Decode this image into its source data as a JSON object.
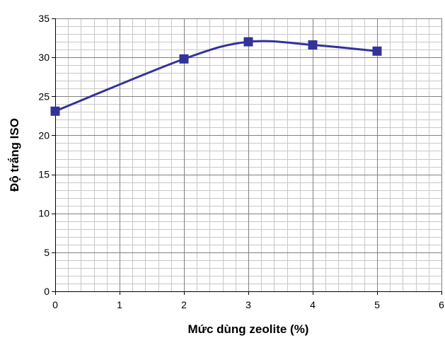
{
  "chart_data": {
    "type": "line",
    "xlabel": "Mức dùng zeolite (%)",
    "ylabel": "Độ trắng ISO",
    "xlim": [
      0,
      6
    ],
    "ylim": [
      0,
      35
    ],
    "x_ticks": [
      0,
      1,
      2,
      3,
      4,
      5,
      6
    ],
    "y_ticks": [
      0,
      5,
      10,
      15,
      20,
      25,
      30,
      35
    ],
    "grid": true,
    "legend": "none",
    "smooth": true,
    "series": [
      {
        "x": [
          0,
          2,
          3,
          4,
          5
        ],
        "y": [
          23.1,
          29.8,
          32.0,
          31.6,
          30.8
        ],
        "color": "#333399",
        "marker": "square"
      }
    ]
  }
}
